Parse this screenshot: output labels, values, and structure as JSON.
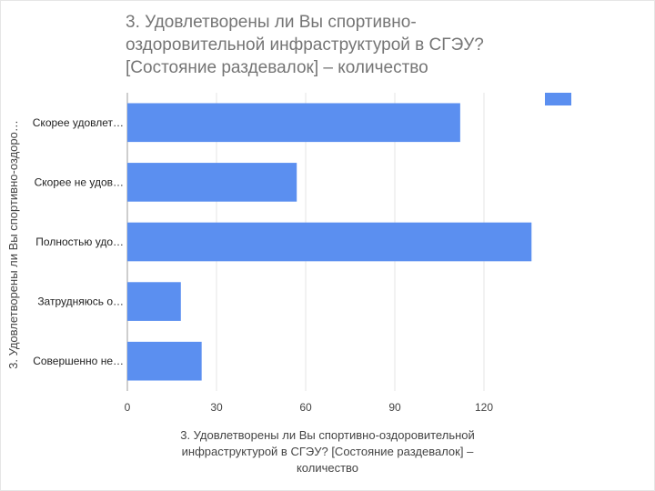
{
  "chart_data": {
    "type": "bar",
    "orientation": "horizontal",
    "title": [
      "3. Удовлетворены ли Вы спортивно-",
      "оздоровительной инфраструктурой в СГЭУ?",
      "[Состояние раздевалок] – количество"
    ],
    "ylabel": "3. Удовлетворены ли Вы спортивно-оздоро…",
    "xlabel": [
      "3. Удовлетворены ли Вы спортивно-оздоровительной",
      "инфраструктурой в СГЭУ? [Состояние раздевалок] –",
      "количество"
    ],
    "categories": [
      "Скорее удовлет…",
      "Скорее не удов…",
      "Полностью удо…",
      "Затрудняюсь о…",
      "Совершенно не…"
    ],
    "values": [
      112,
      57,
      136,
      18,
      25
    ],
    "xticks": [
      "0",
      "30",
      "60",
      "90",
      "120"
    ],
    "xlim": [
      0,
      150
    ],
    "grid": true,
    "legend_position": "top-right",
    "bar_color": "#5b8ff0",
    "grid_color": "#e6e6e6"
  }
}
